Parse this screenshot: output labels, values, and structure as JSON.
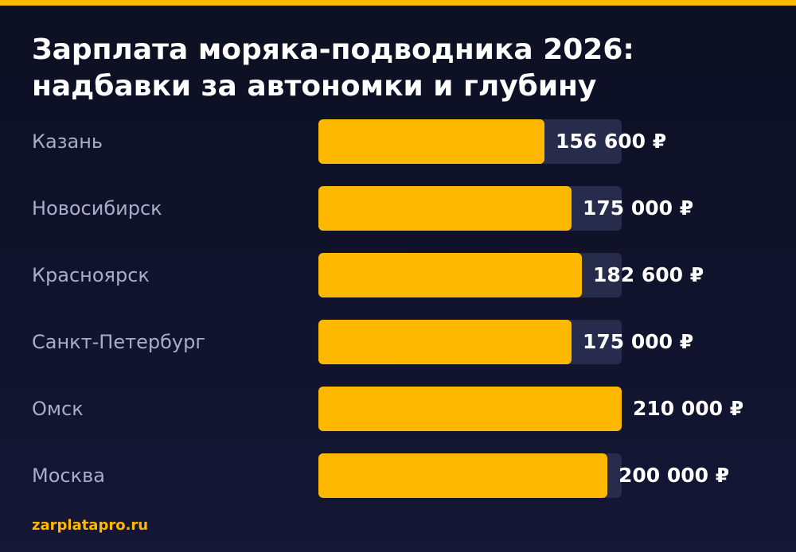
{
  "accent_color": "#ffb800",
  "track_color": "#282c4c",
  "title_lines": [
    "Зарплата моряка-подводника 2026:",
    "надбавки за автономки и глубину"
  ],
  "footer": {
    "site": "zarplatapro.ru"
  },
  "chart_data": {
    "type": "bar",
    "orientation": "horizontal",
    "title": "Зарплата моряка-подводника 2026: надбавки за автономки и глубину",
    "categories": [
      "Казань",
      "Новосибирск",
      "Красноярск",
      "Санкт-Петербург",
      "Омск",
      "Москва"
    ],
    "values": [
      156600,
      175000,
      182600,
      175000,
      210000,
      200000
    ],
    "value_labels": [
      "156 600 ₽",
      "175 000 ₽",
      "182 600 ₽",
      "175 000 ₽",
      "210 000 ₽",
      "200 000 ₽"
    ],
    "xlim": [
      0,
      210000
    ],
    "grid": false,
    "legend": "none"
  }
}
